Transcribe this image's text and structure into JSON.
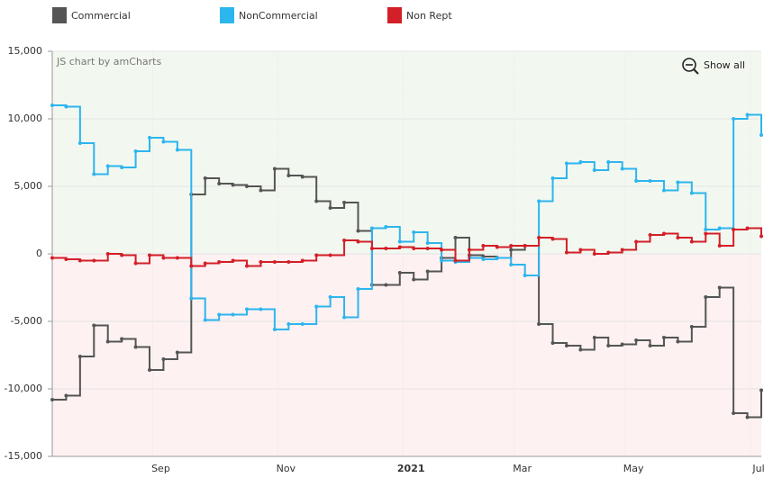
{
  "chart_data": {
    "type": "step-line",
    "credit": "JS chart by amCharts",
    "zoom_button": "Show all",
    "categories": [
      null,
      null,
      null,
      null,
      null,
      null,
      null,
      null,
      "Sep",
      null,
      null,
      null,
      null,
      null,
      null,
      null,
      null,
      "Nov",
      null,
      null,
      null,
      null,
      null,
      null,
      null,
      null,
      "2021",
      null,
      null,
      null,
      null,
      null,
      null,
      null,
      "Mar",
      null,
      null,
      null,
      null,
      null,
      null,
      null,
      "May",
      null,
      null,
      null,
      null,
      null,
      null,
      null,
      null,
      "Jul"
    ],
    "series": [
      {
        "name": "Commercial",
        "color": "#555555",
        "values": [
          -10800,
          -10500,
          -7600,
          -5300,
          -6500,
          -6300,
          -6900,
          -8600,
          -7800,
          -7300,
          4400,
          5600,
          5200,
          5100,
          5000,
          4700,
          6300,
          5800,
          5700,
          3900,
          3400,
          3800,
          1700,
          -2300,
          -2300,
          -1400,
          -1900,
          -1300,
          -300,
          1200,
          -100,
          -200,
          -300,
          300,
          600,
          -5200,
          -6600,
          -6800,
          -7100,
          -6200,
          -6800,
          -6700,
          -6400,
          -6800,
          -6200,
          -6500,
          -5400,
          -3200,
          -2500,
          -11800,
          -12100,
          -10100
        ]
      },
      {
        "name": "NonCommercial",
        "color": "#2db5ee",
        "values": [
          11000,
          10900,
          8200,
          5900,
          6500,
          6400,
          7600,
          8600,
          8300,
          7700,
          -3300,
          -4900,
          -4500,
          -4500,
          -4100,
          -4100,
          -5600,
          -5200,
          -5200,
          -3900,
          -3200,
          -4700,
          -2600,
          1900,
          2000,
          900,
          1600,
          800,
          -500,
          -600,
          -300,
          -400,
          -300,
          -800,
          -1600,
          3900,
          5600,
          6700,
          6800,
          6200,
          6800,
          6300,
          5400,
          5400,
          4700,
          5300,
          4500,
          1800,
          1900,
          10000,
          10300,
          8800
        ]
      },
      {
        "name": "Non Rept",
        "color": "#d31f27",
        "values": [
          -300,
          -400,
          -500,
          -500,
          0,
          -100,
          -700,
          -100,
          -300,
          -300,
          -900,
          -700,
          -600,
          -500,
          -900,
          -600,
          -600,
          -600,
          -500,
          -100,
          -100,
          1000,
          900,
          400,
          400,
          500,
          400,
          400,
          300,
          -500,
          300,
          600,
          500,
          600,
          600,
          1200,
          1100,
          100,
          300,
          0,
          100,
          300,
          900,
          1400,
          1500,
          1200,
          900,
          1500,
          600,
          1800,
          1900,
          1300
        ]
      }
    ],
    "ylim": [
      -15000,
      15000
    ],
    "yticks": [
      {
        "value": -15000,
        "label": "-15,000"
      },
      {
        "value": -10000,
        "label": "-10,000"
      },
      {
        "value": -5000,
        "label": "-5,000"
      },
      0,
      {
        "value": 5000,
        "label": "5,000"
      },
      {
        "value": 10000,
        "label": "10,000"
      },
      {
        "value": 15000,
        "label": "15,000"
      }
    ],
    "bold_categories": [
      "2021"
    ],
    "positive_fill": "#f2f8f0",
    "negative_fill": "#fdf1f1",
    "grid": true,
    "legend": "top"
  }
}
